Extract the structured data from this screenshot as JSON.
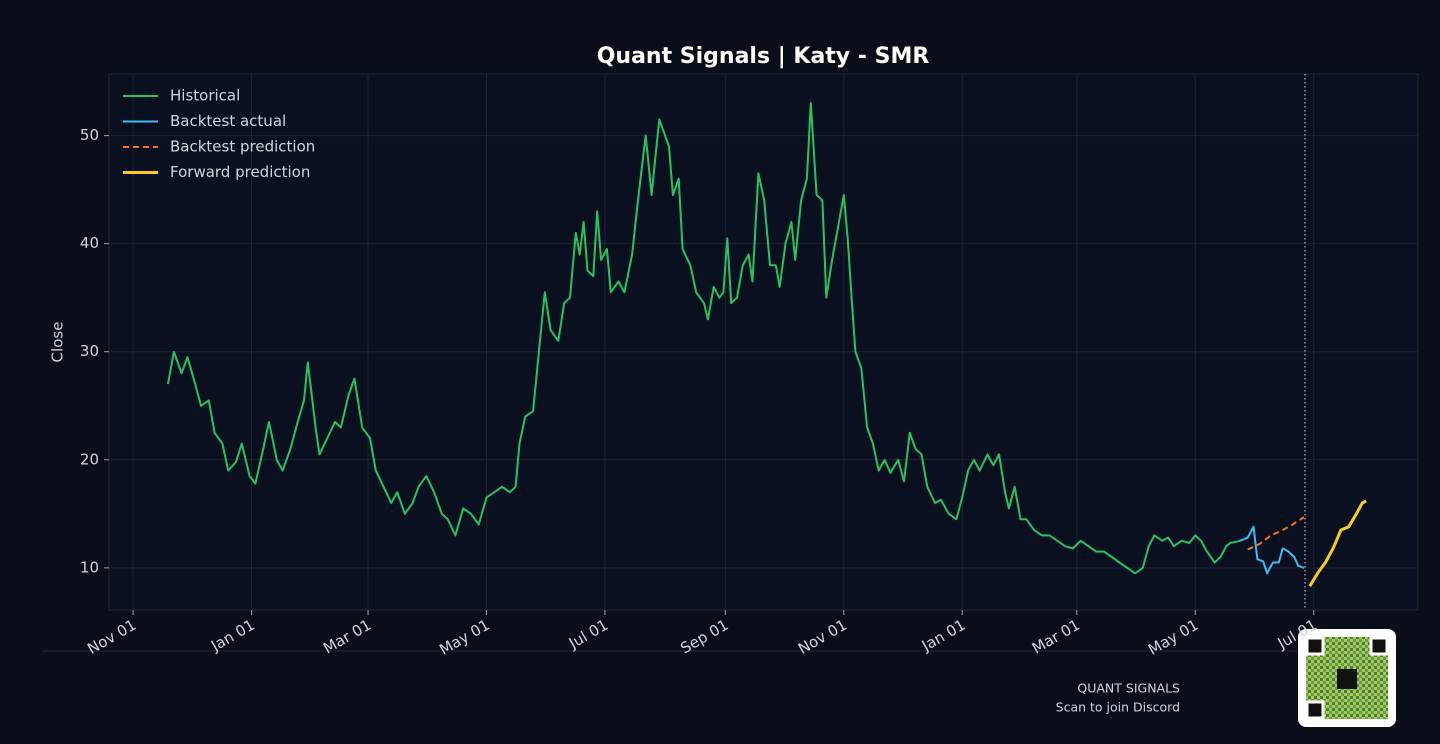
{
  "chart_data": {
    "type": "line",
    "title": "Quant Signals | Katy - SMR",
    "ylabel": "Close",
    "xlim": [
      -12.4,
      661.7
    ],
    "ylim": [
      6.1,
      55.7
    ],
    "xticks": [
      {
        "value": 0,
        "label": "Nov 01"
      },
      {
        "value": 61,
        "label": "Jan 01"
      },
      {
        "value": 121,
        "label": "Mar 01"
      },
      {
        "value": 182,
        "label": "May 01"
      },
      {
        "value": 243,
        "label": "Jul 01"
      },
      {
        "value": 305,
        "label": "Sep 01"
      },
      {
        "value": 366,
        "label": "Nov 01"
      },
      {
        "value": 427,
        "label": "Jan 01"
      },
      {
        "value": 486,
        "label": "Mar 01"
      },
      {
        "value": 547,
        "label": "May 01"
      },
      {
        "value": 608,
        "label": "Jul 01"
      }
    ],
    "yticks": [
      10,
      20,
      30,
      40,
      50
    ],
    "grid": true,
    "legend": "upper left",
    "cutoff": 603.5,
    "series": [
      {
        "name": "Historical",
        "color": "#22c55e",
        "x": [
          18,
          21,
          25,
          28,
          32,
          35,
          39,
          42,
          46,
          49,
          53,
          56,
          60,
          63,
          67,
          70,
          74,
          77,
          81,
          84,
          88,
          90,
          94,
          96,
          100,
          104,
          107,
          111,
          114,
          118,
          122,
          125,
          129,
          133,
          136,
          140,
          144,
          147,
          151,
          155,
          159,
          162,
          166,
          170,
          174,
          178,
          182,
          186,
          190,
          194,
          197,
          199,
          202,
          206,
          209,
          212,
          215,
          219,
          222,
          225,
          228,
          230,
          232,
          234,
          237,
          239,
          241,
          244,
          246,
          250,
          253,
          257,
          260,
          262,
          264,
          267,
          269,
          271,
          274,
          276,
          278,
          281,
          283,
          287,
          290,
          294,
          296,
          299,
          302,
          304,
          306,
          308,
          311,
          314,
          317,
          319,
          322,
          325,
          328,
          331,
          333,
          336,
          339,
          341,
          344,
          347,
          349,
          352,
          355,
          357,
          360,
          363,
          366,
          368,
          370,
          372,
          375,
          378,
          381,
          384,
          387,
          390,
          394,
          397,
          400,
          403,
          406,
          409,
          413,
          416,
          420,
          424,
          427,
          430,
          433,
          436,
          440,
          443,
          446,
          449,
          451,
          454,
          457,
          460,
          464,
          468,
          472,
          476,
          480,
          484,
          488,
          492,
          496,
          500,
          504,
          508,
          512,
          516,
          520,
          523,
          526,
          530,
          533,
          536,
          540,
          544,
          547,
          550,
          553,
          557,
          560,
          563,
          565,
          570
        ],
        "values": [
          27,
          30,
          28,
          29.5,
          27,
          25,
          25.5,
          22.5,
          21.5,
          19,
          19.8,
          21.5,
          18.5,
          17.8,
          21,
          23.5,
          20,
          19,
          21,
          23,
          25.5,
          29,
          23,
          20.5,
          22,
          23.5,
          23,
          26,
          27.5,
          23,
          22,
          19,
          17.5,
          16,
          17,
          15,
          16,
          17.5,
          18.5,
          17,
          15,
          14.5,
          13,
          15.5,
          15,
          14,
          16.5,
          17,
          17.5,
          17,
          17.5,
          21.5,
          24,
          24.5,
          30,
          35.5,
          32,
          31,
          34.5,
          35,
          41,
          39,
          42,
          37.5,
          37,
          43,
          38.5,
          39.5,
          35.5,
          36.5,
          35.5,
          39,
          44,
          47,
          50,
          44.5,
          48,
          51.5,
          50,
          49,
          44.5,
          46,
          39.5,
          38,
          35.5,
          34.5,
          33,
          36,
          35,
          35.5,
          40.5,
          34.5,
          35,
          38,
          39,
          36.5,
          46.5,
          44,
          38,
          38,
          36,
          40,
          42,
          38.5,
          44,
          46,
          53,
          44.5,
          44,
          35,
          38.5,
          41.5,
          44.5,
          40.5,
          35,
          30,
          28.5,
          23,
          21.5,
          19,
          20,
          18.8,
          20,
          18,
          22.5,
          21,
          20.5,
          17.5,
          16,
          16.3,
          15,
          14.5,
          16.5,
          19,
          20,
          19,
          20.5,
          19.5,
          20.5,
          17,
          15.5,
          17.5,
          14.5,
          14.5,
          13.5,
          13,
          13,
          12.5,
          12,
          11.8,
          12.5,
          12,
          11.5,
          11.5,
          11,
          10.5,
          10,
          9.5,
          10,
          12,
          13,
          12.5,
          12.8,
          12,
          12.5,
          12.3,
          13,
          12.5,
          11.5,
          10.5,
          11,
          12,
          12.3,
          12.5
        ]
      },
      {
        "name": "Backtest actual",
        "color": "#38bdf8",
        "x": [
          570,
          574,
          577,
          579,
          582,
          584,
          587,
          590,
          592,
          595,
          598,
          600,
          603
        ],
        "values": [
          12.5,
          12.8,
          13.8,
          10.8,
          10.6,
          9.5,
          10.5,
          10.5,
          11.8,
          11.5,
          11,
          10.2,
          10
        ]
      },
      {
        "name": "Backtest prediction",
        "color": "#f97316",
        "dashed": true,
        "x": [
          574,
          580,
          586,
          592,
          597,
          603
        ],
        "values": [
          11.7,
          12.2,
          13,
          13.5,
          14,
          14.7
        ]
      },
      {
        "name": "Forward prediction",
        "color": "#facc15",
        "x": [
          606,
          610,
          614,
          618,
          622,
          626,
          630,
          633,
          635
        ],
        "values": [
          8.3,
          9.5,
          10.5,
          11.8,
          13.5,
          13.8,
          15,
          16,
          16.2
        ]
      }
    ]
  },
  "footer": {
    "brand": "QUANT SIGNALS",
    "cta": "Scan to join Discord"
  }
}
